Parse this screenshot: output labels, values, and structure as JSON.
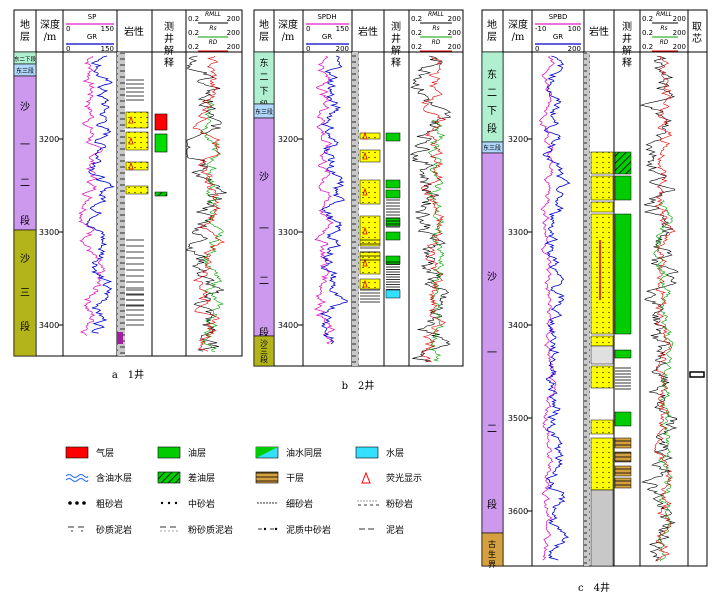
{
  "panels": [
    {
      "caption": "a　1井",
      "headers": {
        "strat": "地层",
        "depth": "深度/m",
        "log1": "SP",
        "log1_lo": "0",
        "log1_hi": "150",
        "log2": "GR",
        "log2_lo": "0",
        "log2_hi": "150",
        "lith": "岩性",
        "interp": "测井解释",
        "res_lo": "0.2",
        "res_hi": "200",
        "res1": "RMLL",
        "res2": "Rs",
        "res3": "RD"
      },
      "strata": [
        "东二下段",
        "东三段",
        "沙一二段",
        "沙三段"
      ],
      "depth_ticks": [
        "3200",
        "3300",
        "3400"
      ]
    },
    {
      "caption": "b　2井",
      "headers": {
        "strat": "地层",
        "depth": "深度/m",
        "log1": "SPDH",
        "log1_lo": "0",
        "log1_hi": "150",
        "log2": "GR",
        "log2_lo": "0",
        "log2_hi": "200",
        "lith": "岩性",
        "interp": "测井解释",
        "res_lo": "0.2",
        "res_hi": "200",
        "res1": "RMLL",
        "res2": "Rs",
        "res3": "RD"
      },
      "strata": [
        "东二下段",
        "东三段",
        "沙一二段",
        "沙三段"
      ],
      "depth_ticks": [
        "3200",
        "3300",
        "3400"
      ]
    },
    {
      "caption": "c　4井",
      "headers": {
        "strat": "地层",
        "depth": "深度/m",
        "log1": "SPBD",
        "log1_lo": "-10",
        "log1_hi": "100",
        "log2": "GR",
        "log2_lo": "0",
        "log2_hi": "200",
        "lith": "岩性",
        "interp": "测井解释",
        "res_lo": "0.2",
        "res_hi": "200",
        "res1": "RMLL",
        "res2": "Rs",
        "res3": "RD",
        "core": "取芯"
      },
      "strata": [
        "东二下段",
        "东三段",
        "沙一二段",
        "古生界"
      ],
      "depth_ticks": [
        "3200",
        "3300",
        "3400",
        "3500",
        "3600"
      ]
    }
  ],
  "legend": [
    {
      "label": "气层",
      "color": "#ff0000",
      "kind": "gas"
    },
    {
      "label": "油层",
      "color": "#00cc00",
      "kind": "oil"
    },
    {
      "label": "油水同层",
      "color": "#00cc00",
      "kind": "oilwater"
    },
    {
      "label": "水层",
      "color": "#33e0ff",
      "kind": "water"
    },
    {
      "label": "含油水层",
      "color": "#2266ff",
      "kind": "oilbearingwater"
    },
    {
      "label": "差油层",
      "color": "#00cc00",
      "kind": "pooroil"
    },
    {
      "label": "干层",
      "color": "#d4a040",
      "kind": "dry"
    },
    {
      "label": "荧光显示",
      "color": "#ff0000",
      "kind": "fluor"
    },
    {
      "label": "粗砂岩",
      "kind": "coarse"
    },
    {
      "label": "中砂岩",
      "kind": "medium"
    },
    {
      "label": "细砂岩",
      "kind": "fine"
    },
    {
      "label": "粉砂岩",
      "kind": "silt"
    },
    {
      "label": "砂质泥岩",
      "kind": "sandymud"
    },
    {
      "label": "粉砂质泥岩",
      "kind": "siltymud"
    },
    {
      "label": "泥质中砂岩",
      "kind": "mudmed"
    },
    {
      "label": "泥岩",
      "kind": "mud"
    }
  ]
}
